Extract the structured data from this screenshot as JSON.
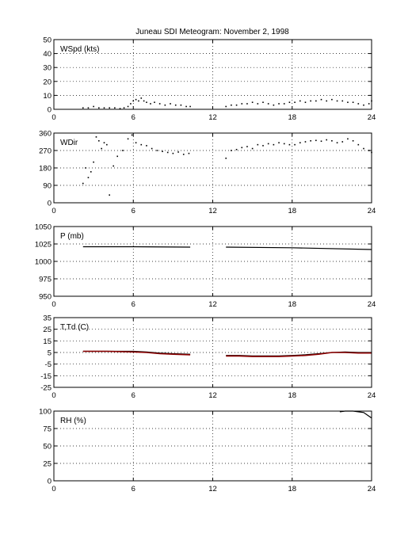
{
  "title": "Juneau SDI Meteogram:  November  2, 1998",
  "chart_data": [
    {
      "type": "scatter",
      "label": "WSpd (kts)",
      "xlim": [
        0,
        24
      ],
      "ylim": [
        0,
        50
      ],
      "x_ticks": [
        0,
        6,
        12,
        18,
        24
      ],
      "y_ticks": [
        0,
        10,
        20,
        30,
        40,
        50
      ],
      "grid": true,
      "series": [
        {
          "color": "#000000",
          "x": [
            2.2,
            2.6,
            3.0,
            3.4,
            3.8,
            4.2,
            4.6,
            5.0,
            5.3,
            5.6,
            5.8,
            6.0,
            6.2,
            6.4,
            6.6,
            6.8,
            7.0,
            7.3,
            7.6,
            8.0,
            8.4,
            8.8,
            9.2,
            9.6,
            10.0,
            10.3,
            13.0,
            13.4,
            13.8,
            14.2,
            14.6,
            15.0,
            15.4,
            15.8,
            16.2,
            16.6,
            17.0,
            17.4,
            17.8,
            18.2,
            18.6,
            19.0,
            19.4,
            19.8,
            20.2,
            20.6,
            21.0,
            21.4,
            21.8,
            22.2,
            22.6,
            23.0,
            23.4,
            23.8,
            24.0
          ],
          "y": [
            1,
            1,
            2,
            1,
            1,
            1,
            1,
            0.5,
            1,
            2,
            4,
            6,
            7,
            6,
            8,
            6,
            5,
            4,
            5,
            4,
            3,
            4,
            3,
            3,
            2,
            2,
            2,
            3,
            3,
            4,
            4,
            5,
            4,
            5,
            4,
            3,
            4,
            4,
            5,
            5,
            6,
            5,
            6,
            6,
            7,
            6,
            7,
            6,
            6,
            5,
            5,
            4,
            3,
            4,
            6
          ]
        }
      ]
    },
    {
      "type": "scatter",
      "label": "WDir",
      "xlim": [
        0,
        24
      ],
      "ylim": [
        0,
        360
      ],
      "x_ticks": [
        0,
        6,
        12,
        18,
        24
      ],
      "y_ticks": [
        0,
        90,
        180,
        270,
        360
      ],
      "grid": true,
      "series": [
        {
          "color": "#000000",
          "x": [
            2.2,
            2.4,
            2.6,
            2.8,
            3.0,
            3.2,
            3.4,
            3.6,
            3.8,
            4.0,
            4.2,
            4.5,
            4.8,
            5.2,
            5.6,
            5.9,
            6.2,
            6.6,
            7.0,
            7.4,
            7.8,
            8.2,
            8.6,
            9.0,
            9.4,
            9.8,
            10.2,
            13.0,
            13.4,
            13.8,
            14.2,
            14.6,
            15.0,
            15.4,
            15.8,
            16.2,
            16.6,
            17.0,
            17.4,
            17.8,
            18.2,
            18.6,
            19.0,
            19.4,
            19.8,
            20.2,
            20.6,
            21.0,
            21.4,
            21.8,
            22.2,
            22.6,
            23.0,
            23.4,
            23.8,
            24.0
          ],
          "y": [
            100,
            180,
            130,
            160,
            210,
            340,
            320,
            280,
            310,
            300,
            40,
            190,
            240,
            270,
            330,
            350,
            310,
            300,
            295,
            280,
            270,
            265,
            260,
            255,
            262,
            250,
            255,
            230,
            270,
            275,
            285,
            290,
            280,
            300,
            295,
            305,
            300,
            310,
            305,
            300,
            300,
            310,
            315,
            320,
            322,
            318,
            325,
            320,
            310,
            315,
            330,
            320,
            300,
            280,
            270,
            260
          ]
        }
      ]
    },
    {
      "type": "line",
      "label": "P (mb)",
      "xlim": [
        0,
        24
      ],
      "ylim": [
        950,
        1050
      ],
      "x_ticks": [
        0,
        6,
        12,
        18,
        24
      ],
      "y_ticks": [
        950,
        975,
        1000,
        1025,
        1050
      ],
      "grid": true,
      "series": [
        {
          "color": "#000000",
          "segments": [
            {
              "x": [
                2.2,
                6.0,
                10.3
              ],
              "y": [
                1021,
                1021,
                1020.5
              ]
            },
            {
              "x": [
                13.0,
                18.0,
                24.0
              ],
              "y": [
                1020.5,
                1019.5,
                1017
              ]
            }
          ]
        }
      ]
    },
    {
      "type": "line",
      "label": "T,Td (C)",
      "xlim": [
        0,
        24
      ],
      "ylim": [
        -25,
        35
      ],
      "x_ticks": [
        0,
        6,
        12,
        18,
        24
      ],
      "y_ticks": [
        -25,
        -15,
        -5,
        5,
        15,
        25,
        35
      ],
      "grid": true,
      "series": [
        {
          "color": "#000000",
          "segments": [
            {
              "x": [
                2.2,
                4.0,
                6.0,
                7.0,
                8.0,
                9.0,
                10.3
              ],
              "y": [
                6,
                6,
                6,
                5.5,
                4.5,
                4,
                3.5
              ]
            },
            {
              "x": [
                13.0,
                14.0,
                15.0,
                16.0,
                17.0,
                18.0,
                19.0,
                20.0,
                21.0,
                22.0,
                23.0,
                24.0
              ],
              "y": [
                2.5,
                2.5,
                2,
                2,
                2,
                2.5,
                3,
                4,
                5,
                5.5,
                5,
                5
              ]
            }
          ]
        },
        {
          "color": "#8b0000",
          "segments": [
            {
              "x": [
                2.2,
                4.0,
                6.0,
                7.0,
                8.0,
                9.0,
                10.3
              ],
              "y": [
                6,
                6,
                5.5,
                5,
                4,
                3.5,
                3
              ]
            },
            {
              "x": [
                13.0,
                14.0,
                15.0,
                16.0,
                17.0,
                18.0,
                19.0,
                20.0,
                21.0,
                22.0,
                23.0,
                24.0
              ],
              "y": [
                2,
                2,
                1.5,
                1.5,
                1.5,
                2,
                2.5,
                3.5,
                5,
                5,
                4.5,
                4.5
              ]
            }
          ]
        }
      ]
    },
    {
      "type": "line",
      "label": "RH (%)",
      "xlim": [
        0,
        24
      ],
      "ylim": [
        0,
        100
      ],
      "x_ticks": [
        0,
        6,
        12,
        18,
        24
      ],
      "y_ticks": [
        0,
        25,
        50,
        75,
        100
      ],
      "grid": true,
      "series": [
        {
          "color": "#000000",
          "segments": [
            {
              "x": [
                21.6,
                22.0,
                22.6,
                23.0,
                23.4,
                23.7,
                24.0
              ],
              "y": [
                99,
                100,
                100,
                99,
                98,
                94,
                90
              ]
            }
          ]
        }
      ]
    }
  ]
}
